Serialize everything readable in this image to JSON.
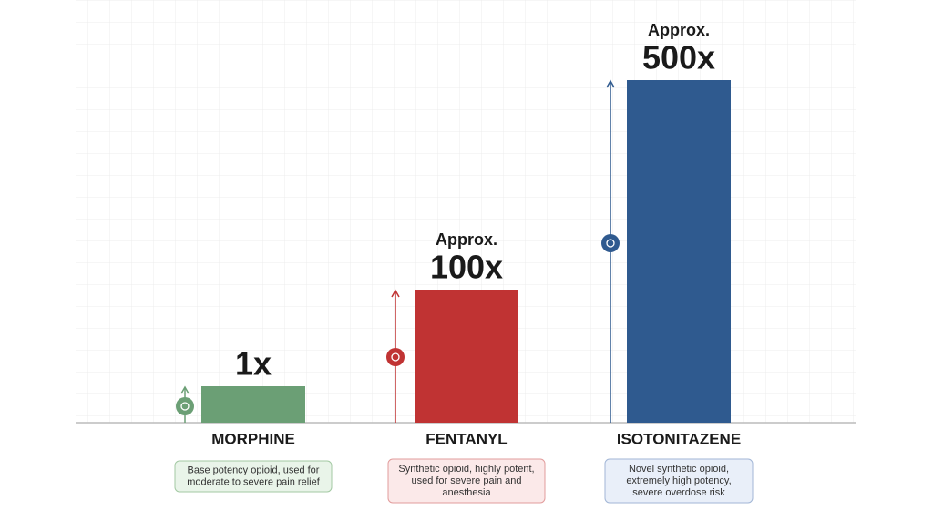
{
  "items": [
    {
      "name": "MORPHINE",
      "potency": "1x",
      "description": [
        "Base potency opioid, used for",
        "moderate to severe pain relief"
      ]
    },
    {
      "name": "FENTANYL",
      "approx": "Approx.",
      "potency": "100x",
      "description": [
        "Synthetic opioid, highly potent,",
        "used for severe pain and",
        "anesthesia"
      ]
    },
    {
      "name": "ISOTONITAZENE",
      "approx": "Approx.",
      "potency": "500x",
      "description": [
        "Novel synthetic opioid,",
        "extremely high potency,",
        "severe overdose risk"
      ]
    }
  ]
}
